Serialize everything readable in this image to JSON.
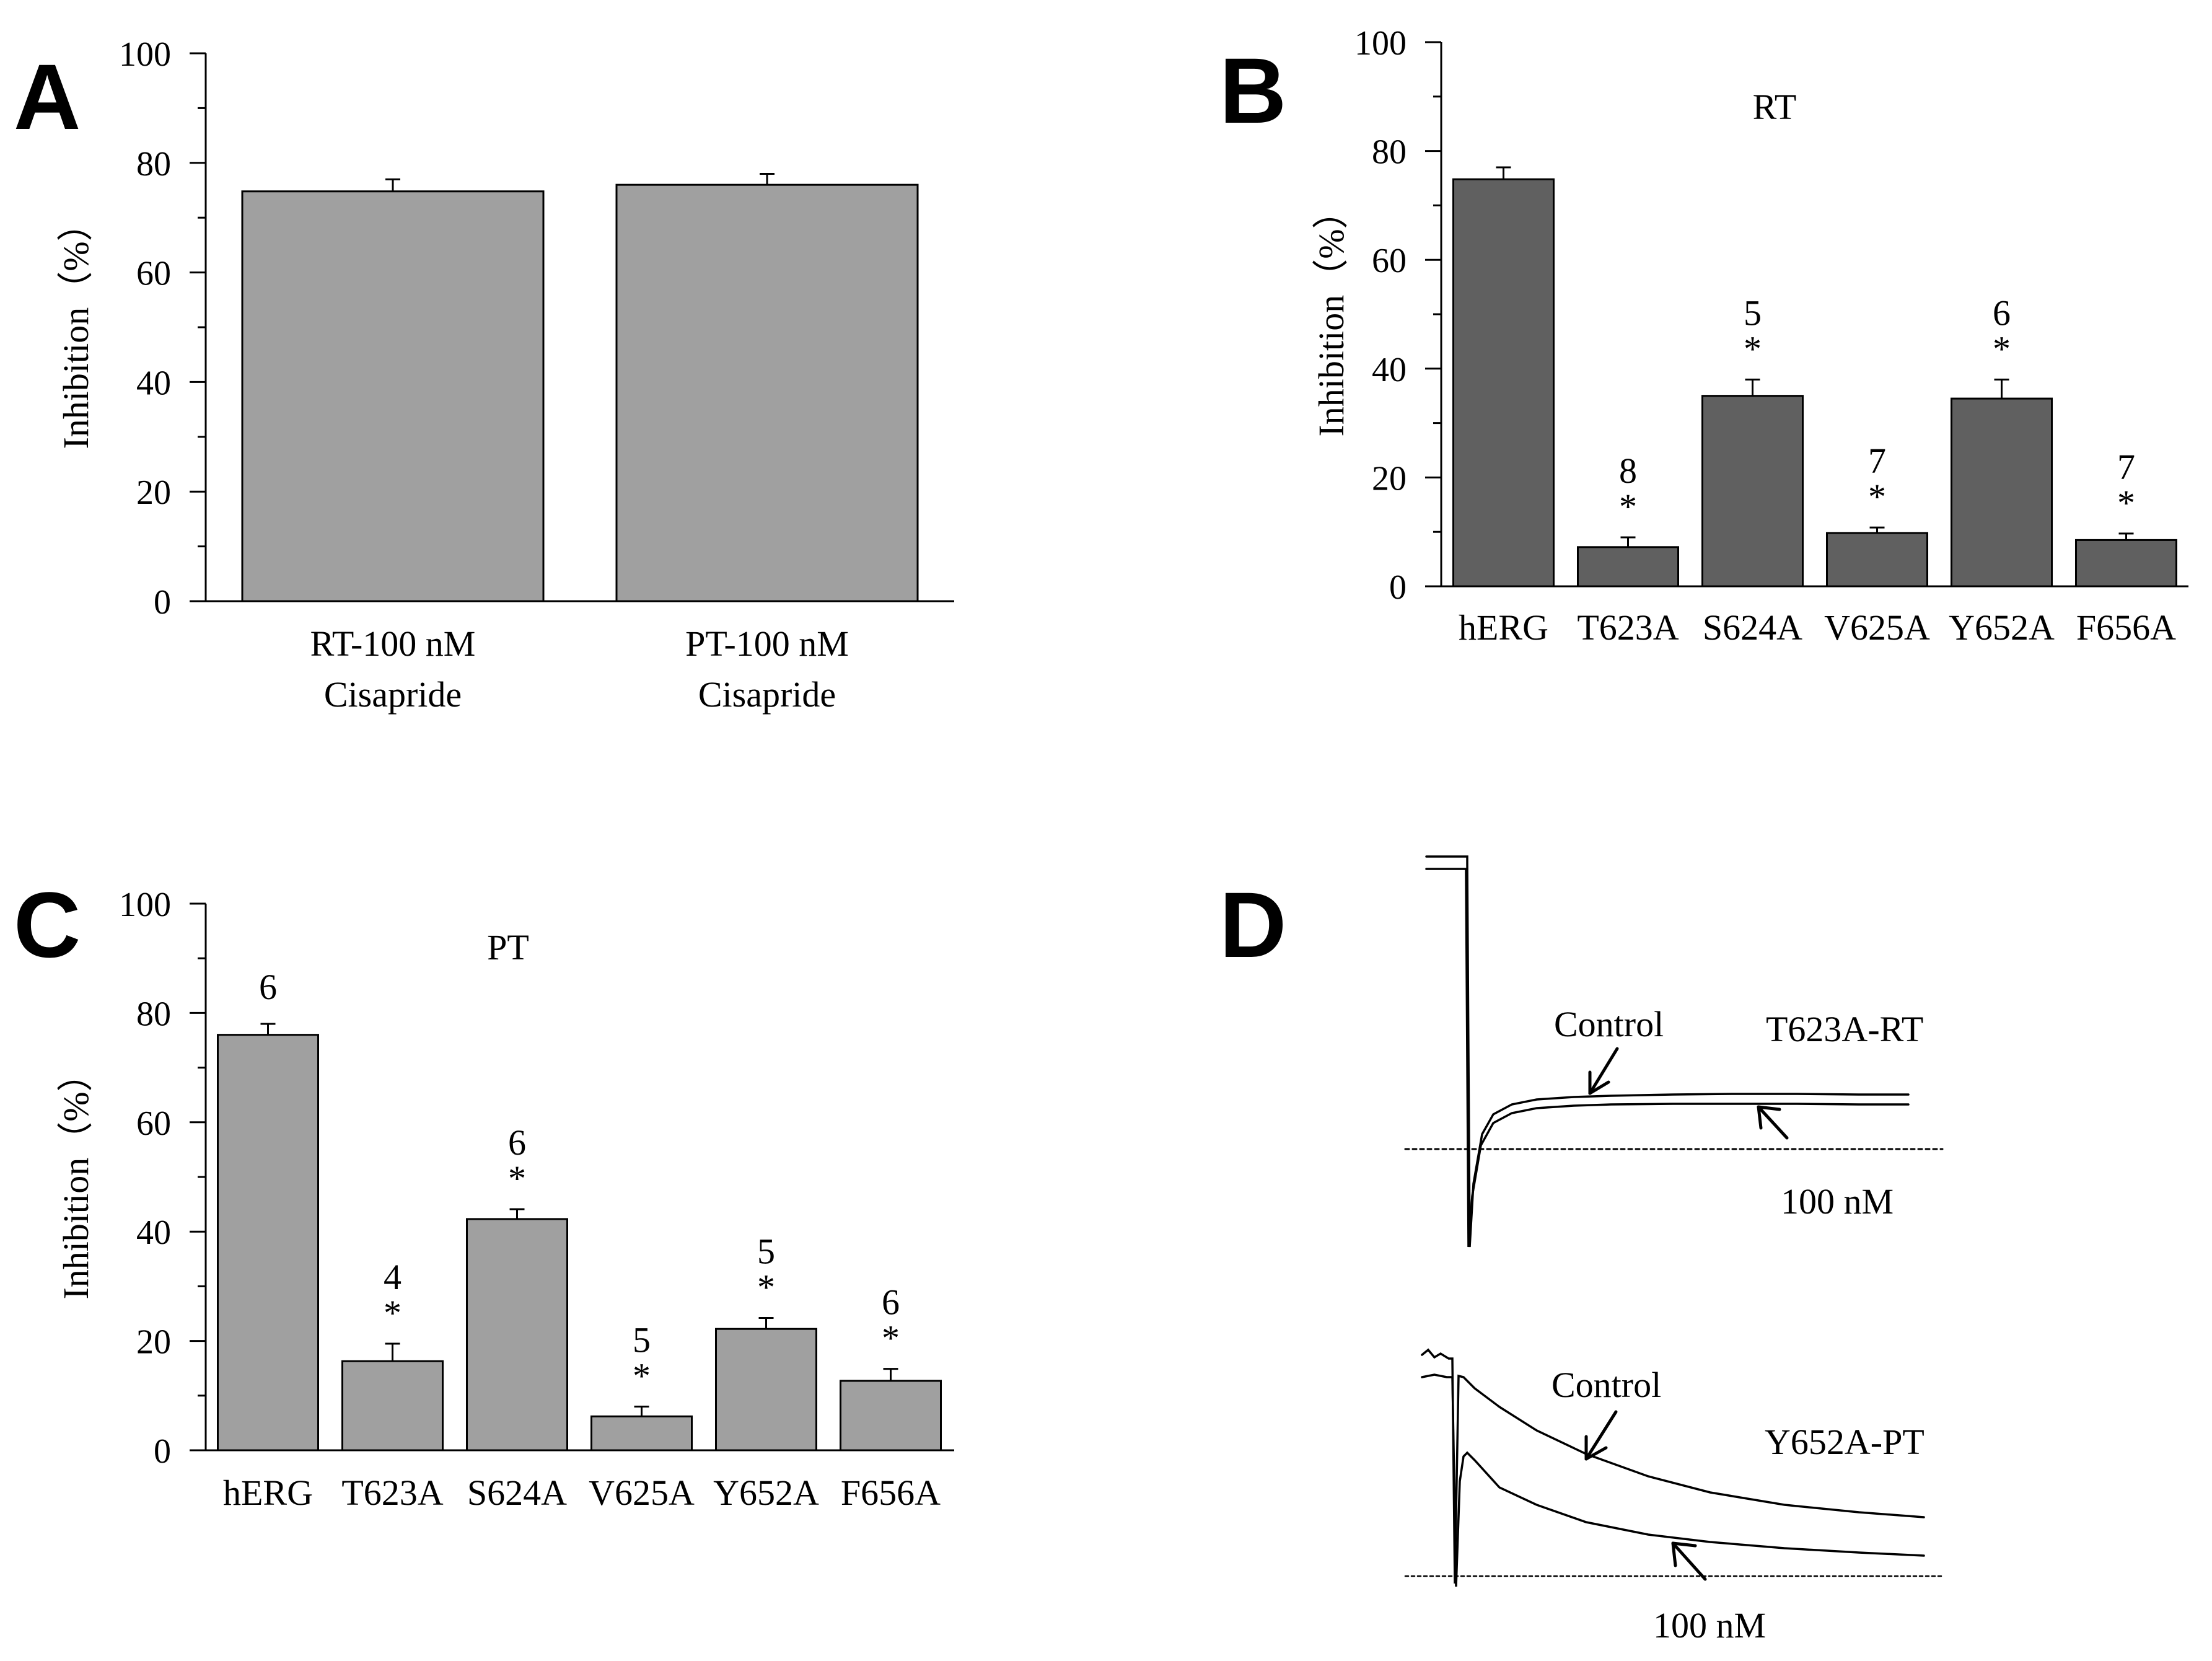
{
  "panel_labels": {
    "a": "A",
    "b": "B",
    "c": "C",
    "d": "D"
  },
  "colors": {
    "light_bar": "#a0a0a0",
    "dark_bar": "#606060",
    "axis": "#000000"
  },
  "chart_data": [
    {
      "id": "A",
      "type": "bar",
      "title": "",
      "xlabel": "",
      "ylabel": "Inhibition（%）",
      "ylim": [
        0,
        100
      ],
      "yticks": [
        0,
        20,
        40,
        60,
        80,
        100
      ],
      "categories": [
        "RT-100 nM\nCisapride",
        "PT-100 nM\nCisapride"
      ],
      "category_lines": [
        [
          "RT-100 nM",
          "Cisapride"
        ],
        [
          "PT-100 nM",
          "Cisapride"
        ]
      ],
      "values": [
        74.8,
        76.0
      ],
      "errors": [
        2.2,
        2.0
      ],
      "n_labels": [
        "",
        ""
      ],
      "significance": [
        "",
        ""
      ],
      "bar_color": "#a0a0a0"
    },
    {
      "id": "B",
      "type": "bar",
      "title": "RT",
      "xlabel": "",
      "ylabel": "Inhibition（%）",
      "ylim": [
        0,
        100
      ],
      "yticks": [
        0,
        20,
        40,
        60,
        80,
        100
      ],
      "categories": [
        "hERG",
        "T623A",
        "S624A",
        "V625A",
        "Y652A",
        "F656A"
      ],
      "values": [
        74.8,
        7.2,
        35.0,
        9.8,
        34.5,
        8.5
      ],
      "errors": [
        2.2,
        1.8,
        3.0,
        1.0,
        3.5,
        1.2
      ],
      "n_labels": [
        "",
        "8",
        "5",
        "7",
        "6",
        "7"
      ],
      "significance": [
        "",
        "*",
        "*",
        "*",
        "*",
        "*"
      ],
      "bar_color": "#606060"
    },
    {
      "id": "C",
      "type": "bar",
      "title": "PT",
      "xlabel": "",
      "ylabel": "Inhibition（%）",
      "ylim": [
        0,
        100
      ],
      "yticks": [
        0,
        20,
        40,
        60,
        80,
        100
      ],
      "categories": [
        "hERG",
        "T623A",
        "S624A",
        "V625A",
        "Y652A",
        "F656A"
      ],
      "values": [
        76.0,
        16.3,
        42.3,
        6.2,
        22.2,
        12.7
      ],
      "errors": [
        2.0,
        3.2,
        1.8,
        1.8,
        2.0,
        2.2
      ],
      "n_labels": [
        "6",
        "4",
        "6",
        "5",
        "5",
        "6"
      ],
      "significance": [
        "",
        "*",
        "*",
        "*",
        "*",
        "*"
      ],
      "bar_color": "#a0a0a0"
    }
  ],
  "traces": {
    "top": {
      "name": "T623A-RT",
      "control_label": "Control",
      "drug_label": "100 nM"
    },
    "bottom": {
      "name": "Y652A-PT",
      "control_label": "Control",
      "drug_label": "100 nM"
    }
  }
}
